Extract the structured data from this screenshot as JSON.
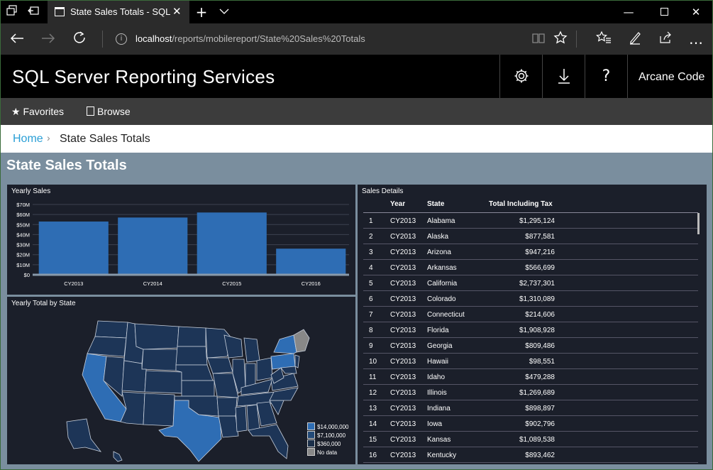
{
  "browser": {
    "tab_title": "State Sales Totals - SQL",
    "url_host": "localhost",
    "url_path": "/reports/mobilereport/State%20Sales%20Totals"
  },
  "app": {
    "brand": "SQL Server Reporting Services",
    "user": "Arcane Code",
    "menu": [
      "Favorites",
      "Browse"
    ]
  },
  "breadcrumb": {
    "home": "Home",
    "current": "State Sales Totals"
  },
  "report": {
    "title": "State Sales Totals",
    "yearly_sales": {
      "title": "Yearly Sales"
    },
    "map": {
      "title": "Yearly Total by State",
      "legend": [
        "$14,000,000",
        "$7,100,000",
        "$360,000",
        "No data"
      ],
      "legend_colors": [
        "#2e6db4",
        "#234a78",
        "#1b2f4a",
        "#888888"
      ]
    },
    "details": {
      "title": "Sales Details",
      "headers": [
        "Year",
        "State",
        "Total Including Tax"
      ],
      "rows": [
        [
          "1",
          "CY2013",
          "Alabama",
          "$1,295,124"
        ],
        [
          "2",
          "CY2013",
          "Alaska",
          "$877,581"
        ],
        [
          "3",
          "CY2013",
          "Arizona",
          "$947,216"
        ],
        [
          "4",
          "CY2013",
          "Arkansas",
          "$566,699"
        ],
        [
          "5",
          "CY2013",
          "California",
          "$2,737,301"
        ],
        [
          "6",
          "CY2013",
          "Colorado",
          "$1,310,089"
        ],
        [
          "7",
          "CY2013",
          "Connecticut",
          "$214,606"
        ],
        [
          "8",
          "CY2013",
          "Florida",
          "$1,908,928"
        ],
        [
          "9",
          "CY2013",
          "Georgia",
          "$809,486"
        ],
        [
          "10",
          "CY2013",
          "Hawaii",
          "$98,551"
        ],
        [
          "11",
          "CY2013",
          "Idaho",
          "$479,288"
        ],
        [
          "12",
          "CY2013",
          "Illinois",
          "$1,269,689"
        ],
        [
          "13",
          "CY2013",
          "Indiana",
          "$898,897"
        ],
        [
          "14",
          "CY2013",
          "Iowa",
          "$902,796"
        ],
        [
          "15",
          "CY2013",
          "Kansas",
          "$1,089,538"
        ],
        [
          "16",
          "CY2013",
          "Kentucky",
          "$893,462"
        ]
      ]
    }
  },
  "chart_data": {
    "type": "bar",
    "title": "Yearly Sales",
    "categories": [
      "CY2013",
      "CY2014",
      "CY2015",
      "CY2016"
    ],
    "values": [
      53,
      57,
      62,
      26
    ],
    "units": "M",
    "yticks": [
      "$0",
      "$10M",
      "$20M",
      "$30M",
      "$40M",
      "$50M",
      "$60M",
      "$70M"
    ],
    "ylim": [
      0,
      70
    ],
    "bar_color": "#2e6db4",
    "grid": true
  }
}
